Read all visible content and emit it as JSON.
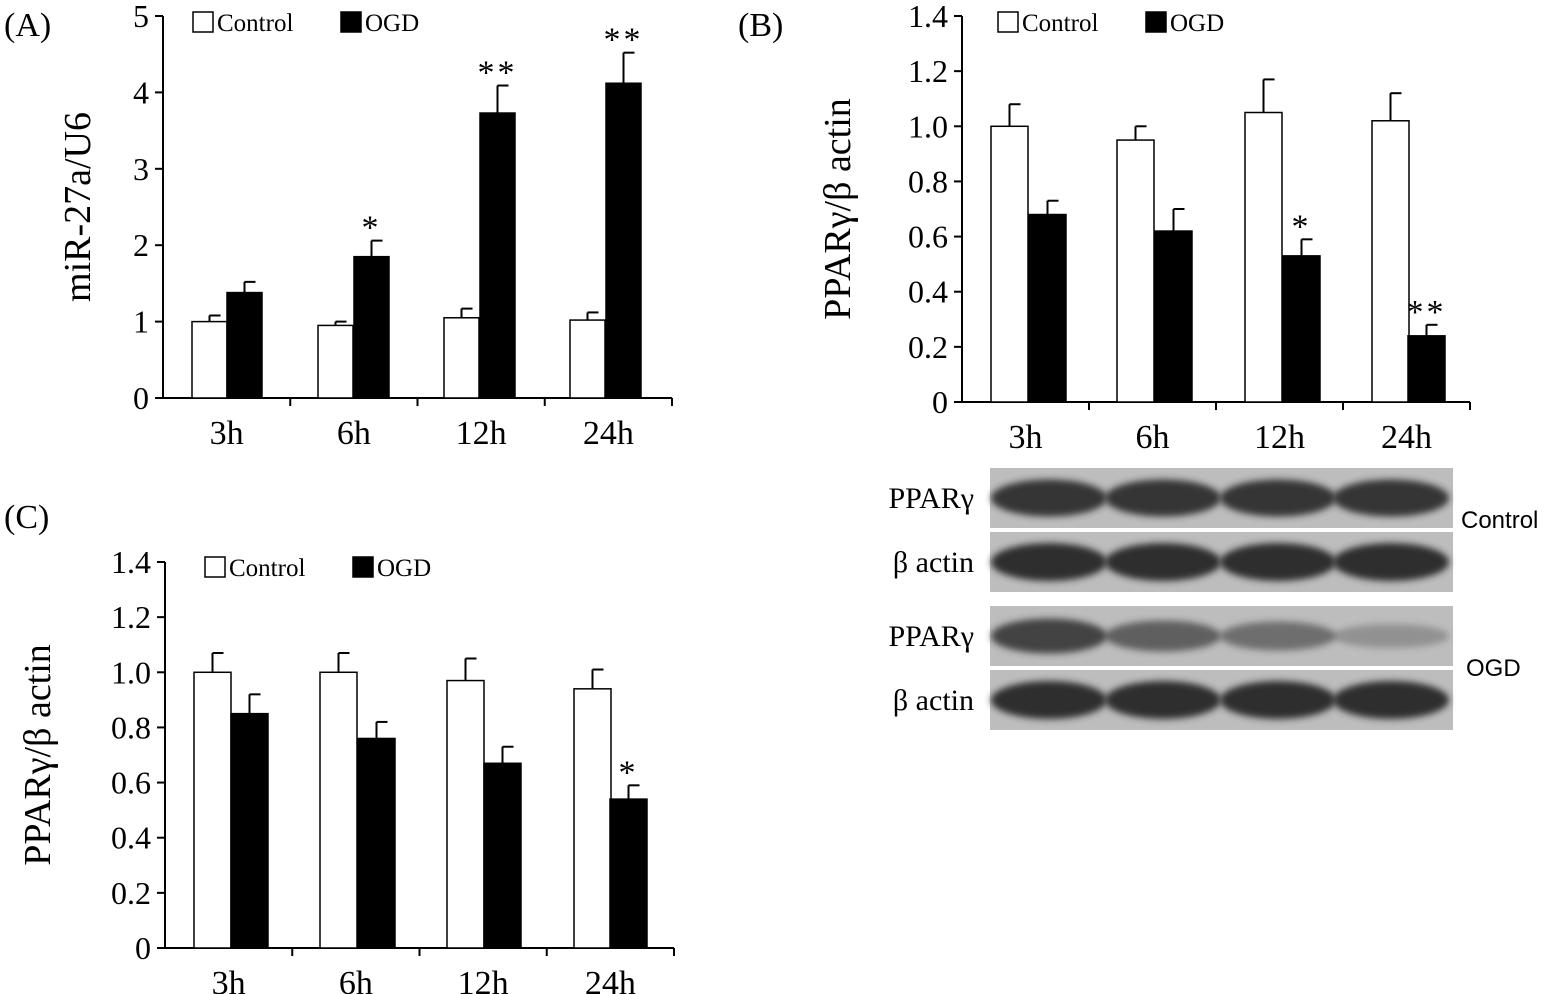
{
  "legend": {
    "control": "Control",
    "ogd": "OGD"
  },
  "colors": {
    "control": "#ffffff",
    "ogd": "#000000",
    "blot_bg": "#bdbdbd",
    "band": "#2d2d2d"
  },
  "chart_data": [
    {
      "id": "A",
      "letter": "(A)",
      "type": "bar",
      "ylabel": "miR-27a/U6",
      "categories": [
        "3h",
        "6h",
        "12h",
        "24h"
      ],
      "ylim": [
        0,
        5
      ],
      "yticks": [
        "0",
        "1",
        "2",
        "3",
        "4",
        "5"
      ],
      "series": [
        {
          "name": "Control",
          "values": [
            1.0,
            0.95,
            1.05,
            1.02
          ],
          "errors": [
            0.08,
            0.05,
            0.12,
            0.1
          ],
          "sig": [
            "",
            "",
            "",
            ""
          ]
        },
        {
          "name": "OGD",
          "values": [
            1.38,
            1.85,
            3.73,
            4.12
          ],
          "errors": [
            0.14,
            0.21,
            0.36,
            0.4
          ],
          "sig": [
            "",
            "*",
            "**",
            "**"
          ]
        }
      ]
    },
    {
      "id": "B",
      "letter": "(B)",
      "type": "bar",
      "ylabel": "PPARγ/β actin",
      "categories": [
        "3h",
        "6h",
        "12h",
        "24h"
      ],
      "ylim": [
        0,
        1.4
      ],
      "yticks": [
        "0",
        "0.2",
        "0.4",
        "0.6",
        "0.8",
        "1.0",
        "1.2",
        "1.4"
      ],
      "series": [
        {
          "name": "Control",
          "values": [
            1.0,
            0.95,
            1.05,
            1.02
          ],
          "errors": [
            0.08,
            0.05,
            0.12,
            0.1
          ],
          "sig": [
            "",
            "",
            "",
            ""
          ]
        },
        {
          "name": "OGD",
          "values": [
            0.68,
            0.62,
            0.53,
            0.24
          ],
          "errors": [
            0.05,
            0.08,
            0.06,
            0.04
          ],
          "sig": [
            "",
            "",
            "*",
            "**"
          ]
        }
      ]
    },
    {
      "id": "C",
      "letter": "(C)",
      "type": "bar",
      "ylabel": "PPARγ/β actin",
      "categories": [
        "3h",
        "6h",
        "12h",
        "24h"
      ],
      "ylim": [
        0,
        1.4
      ],
      "yticks": [
        "0",
        "0.2",
        "0.4",
        "0.6",
        "0.8",
        "1.0",
        "1.2",
        "1.4"
      ],
      "series": [
        {
          "name": "Control",
          "values": [
            1.0,
            1.0,
            0.97,
            0.94
          ],
          "errors": [
            0.07,
            0.07,
            0.08,
            0.07
          ],
          "sig": [
            "",
            "",
            "",
            ""
          ]
        },
        {
          "name": "OGD",
          "values": [
            0.85,
            0.76,
            0.67,
            0.54
          ],
          "errors": [
            0.07,
            0.06,
            0.06,
            0.05
          ],
          "sig": [
            "",
            "",
            "",
            "*"
          ]
        }
      ]
    }
  ],
  "blot": {
    "groups": [
      {
        "name": "Control",
        "rows": [
          {
            "label": "PPARγ",
            "intensity": [
              0.95,
              0.95,
              0.95,
              0.95
            ]
          },
          {
            "label": "β actin",
            "intensity": [
              1.0,
              1.0,
              1.0,
              1.0
            ]
          }
        ]
      },
      {
        "name": "OGD",
        "rows": [
          {
            "label": "PPARγ",
            "intensity": [
              0.85,
              0.65,
              0.55,
              0.3
            ]
          },
          {
            "label": "β actin",
            "intensity": [
              1.0,
              1.0,
              1.0,
              1.0
            ]
          }
        ]
      }
    ]
  }
}
